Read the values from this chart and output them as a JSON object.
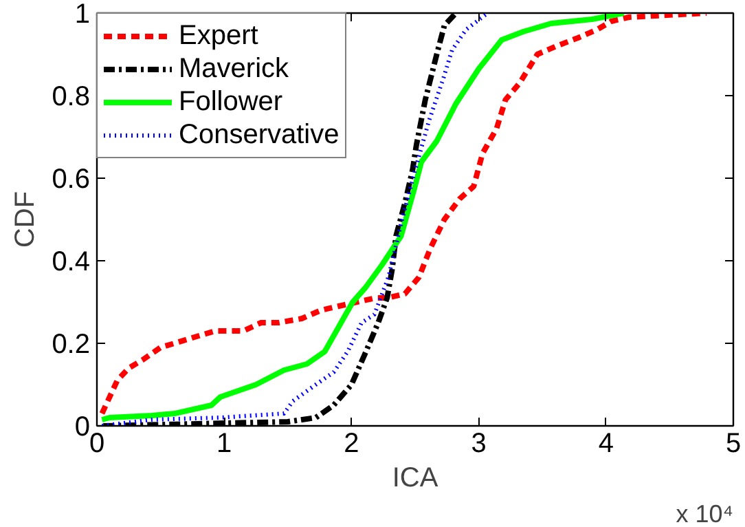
{
  "chart_data": {
    "type": "line",
    "xlabel": "ICA",
    "ylabel": "CDF",
    "annotations": [
      "x 10⁴"
    ],
    "xlim": [
      0,
      5
    ],
    "ylim": [
      0,
      1
    ],
    "xticks": [
      0,
      1,
      2,
      3,
      4,
      5
    ],
    "yticks": [
      0,
      0.2,
      0.4,
      0.6,
      0.8,
      1
    ],
    "grid": false,
    "legend": "top left",
    "series": [
      {
        "name": "Expert",
        "color": "#ff0000",
        "line_style": "dashed",
        "x": [
          0.04,
          0.16,
          0.25,
          0.36,
          0.5,
          0.61,
          0.82,
          0.93,
          1.15,
          1.29,
          1.43,
          1.61,
          1.76,
          1.9,
          2.19,
          2.28,
          2.42,
          2.53,
          2.62,
          2.73,
          2.85,
          2.96,
          3.03,
          3.14,
          3.21,
          3.32,
          3.46,
          3.61,
          3.78,
          3.93,
          4.04,
          4.18,
          4.79
        ],
        "values": [
          0.03,
          0.11,
          0.14,
          0.16,
          0.19,
          0.2,
          0.22,
          0.23,
          0.23,
          0.25,
          0.25,
          0.26,
          0.28,
          0.29,
          0.31,
          0.31,
          0.32,
          0.36,
          0.43,
          0.5,
          0.55,
          0.58,
          0.66,
          0.72,
          0.79,
          0.83,
          0.9,
          0.92,
          0.94,
          0.96,
          0.98,
          0.99,
          1.0
        ]
      },
      {
        "name": "Maverick",
        "color": "#000000",
        "line_style": "dashdot",
        "x": [
          0.05,
          1.5,
          1.72,
          1.86,
          2.0,
          2.1,
          2.21,
          2.28,
          2.32,
          2.35,
          2.42,
          2.48,
          2.51,
          2.58,
          2.67,
          2.73,
          2.82
        ],
        "values": [
          0,
          0.01,
          0.02,
          0.05,
          0.1,
          0.17,
          0.25,
          0.31,
          0.38,
          0.46,
          0.54,
          0.62,
          0.68,
          0.79,
          0.9,
          0.97,
          1.0
        ]
      },
      {
        "name": "Follower",
        "color": "#00ff00",
        "line_style": "solid",
        "x": [
          0.04,
          0.1,
          0.43,
          0.61,
          0.9,
          0.97,
          1.25,
          1.47,
          1.65,
          1.79,
          1.9,
          2.01,
          2.11,
          2.24,
          2.39,
          2.49,
          2.55,
          2.67,
          2.82,
          3.0,
          3.18,
          3.35,
          3.57,
          3.89,
          4.14
        ],
        "values": [
          0.015,
          0.02,
          0.025,
          0.03,
          0.05,
          0.07,
          0.1,
          0.135,
          0.15,
          0.18,
          0.24,
          0.3,
          0.335,
          0.39,
          0.46,
          0.57,
          0.64,
          0.69,
          0.78,
          0.865,
          0.935,
          0.955,
          0.975,
          0.985,
          1.0
        ]
      },
      {
        "name": "Conservative",
        "color": "#0000ff",
        "line_style": "dotted",
        "x": [
          0.04,
          0.43,
          0.97,
          1.47,
          1.54,
          1.72,
          1.86,
          1.97,
          2.08,
          2.18,
          2.29,
          2.39,
          2.5,
          2.61,
          2.72,
          2.79,
          2.9,
          3.07
        ],
        "values": [
          0,
          0.015,
          0.02,
          0.03,
          0.06,
          0.1,
          0.13,
          0.18,
          0.25,
          0.27,
          0.36,
          0.49,
          0.62,
          0.74,
          0.84,
          0.91,
          0.96,
          1.0
        ]
      }
    ]
  }
}
